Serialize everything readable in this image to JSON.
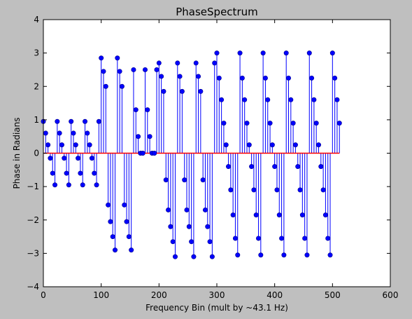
{
  "chart_data": {
    "type": "stem",
    "title": "PhaseSpectrum",
    "xlabel": "Frequency Bin (mult by ~43.1 Hz)",
    "ylabel": "Phase in Radians",
    "xlim": [
      0,
      600
    ],
    "ylim": [
      -4,
      4
    ],
    "x_ticks": [
      "0",
      "100",
      "200",
      "300",
      "400",
      "500",
      "600"
    ],
    "y_ticks": [
      "4",
      "3",
      "2",
      "1",
      "0",
      "−1",
      "−2",
      "−3",
      "−4"
    ],
    "x_tick_values": [
      0,
      100,
      200,
      300,
      400,
      500,
      600
    ],
    "y_tick_values": [
      4,
      3,
      2,
      1,
      0,
      -1,
      -2,
      -3,
      -4
    ],
    "grid": false,
    "colors": {
      "marker": "#0000ff",
      "stem": "#0000ff",
      "baseline": "#ff0000",
      "axes_bg": "#ffffff",
      "figure_bg": "#bfbfbf"
    },
    "series_rule": "x = bins 0..512 step 4; y = phase, zero where |phase| is negligible",
    "x_start": 0,
    "x_stop": 512,
    "x_step": 4,
    "segments": [
      {
        "x_from": 0,
        "x_to": 96,
        "pattern": [
          0.95,
          0.6,
          0.25,
          -0.15,
          -0.6,
          -0.95
        ]
      },
      {
        "x_from": 100,
        "x_to": 152,
        "pattern": [
          2.85,
          2.45,
          2.0,
          -1.55,
          -2.05,
          -2.5,
          -2.9
        ]
      },
      {
        "x_from": 156,
        "x_to": 196,
        "pattern": [
          2.5,
          1.3,
          0.5,
          0.0,
          0.0
        ]
      },
      {
        "x_from": 200,
        "x_to": 296,
        "pattern": [
          2.7,
          2.3,
          1.85,
          -0.8,
          -1.7,
          -2.2,
          -2.65,
          -3.1
        ]
      },
      {
        "x_from": 300,
        "x_to": 512,
        "pattern": [
          3.0,
          2.25,
          1.6,
          0.9,
          0.25,
          -0.4,
          -1.1,
          -1.85,
          -2.55,
          -3.05
        ]
      }
    ]
  }
}
